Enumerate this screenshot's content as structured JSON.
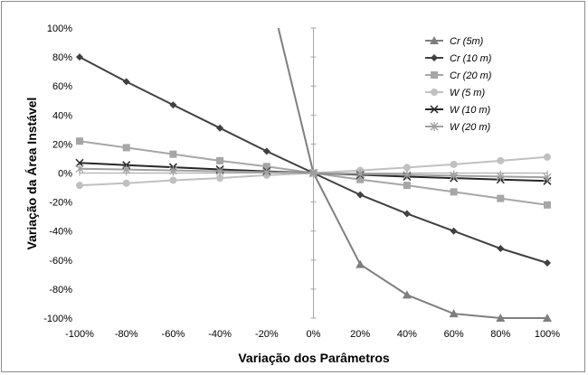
{
  "chart_data": {
    "type": "line",
    "xlabel": "Variação dos Parâmetros",
    "ylabel": "Variação da Área Instável",
    "x": [
      -100,
      -80,
      -60,
      -40,
      -20,
      0,
      20,
      40,
      60,
      80,
      100
    ],
    "x_tick_labels": [
      "-100%",
      "-80%",
      "-60%",
      "-40%",
      "-20%",
      "0%",
      "20%",
      "40%",
      "60%",
      "80%",
      "100%"
    ],
    "y_ticks": [
      -100,
      -80,
      -60,
      -40,
      -20,
      0,
      20,
      40,
      60,
      80,
      100
    ],
    "y_tick_labels": [
      "-100%",
      "-80%",
      "-60%",
      "-40%",
      "-20%",
      "0%",
      "20%",
      "40%",
      "60%",
      "80%",
      "100%"
    ],
    "xlim": [
      -100,
      100
    ],
    "ylim": [
      -100,
      100
    ],
    "grid": false,
    "legend_position": "top-right",
    "series": [
      {
        "name": "Cr (5m)",
        "marker": "triangle",
        "color": "#7f7f7f",
        "x": [
          -15,
          0,
          20,
          40,
          60,
          80,
          100
        ],
        "y": [
          100,
          0,
          -63,
          -84,
          -97,
          -100,
          -100
        ],
        "marker_x": [
          20,
          40,
          60,
          80,
          100
        ],
        "marker_y": [
          -63,
          -84,
          -97,
          -100,
          -100
        ]
      },
      {
        "name": "Cr (10 m)",
        "marker": "diamond",
        "color": "#404040",
        "x": [
          -100,
          -80,
          -60,
          -40,
          -20,
          0,
          20,
          40,
          60,
          80,
          100
        ],
        "y": [
          80,
          63,
          47,
          31,
          15,
          0,
          -15,
          -28,
          -40,
          -52,
          -62
        ]
      },
      {
        "name": "Cr (20 m)",
        "marker": "square",
        "color": "#a6a6a6",
        "x": [
          -100,
          -80,
          -60,
          -40,
          -20,
          0,
          20,
          40,
          60,
          80,
          100
        ],
        "y": [
          22,
          17.5,
          13,
          8.5,
          4.5,
          0,
          -4.5,
          -8.5,
          -13,
          -17.5,
          -22
        ]
      },
      {
        "name": "W (5 m)",
        "marker": "circle",
        "color": "#c0c0c0",
        "x": [
          -100,
          -80,
          -60,
          -40,
          -20,
          0,
          20,
          40,
          60,
          80,
          100
        ],
        "y": [
          -8.5,
          -7,
          -5,
          -3.5,
          -1.5,
          0,
          1.8,
          3.8,
          6,
          8.5,
          11
        ]
      },
      {
        "name": "W (10 m)",
        "marker": "x",
        "color": "#262626",
        "x": [
          -100,
          -80,
          -60,
          -40,
          -20,
          0,
          20,
          40,
          60,
          80,
          100
        ],
        "y": [
          7,
          5.5,
          4,
          2.5,
          1.2,
          0,
          -1.2,
          -2.5,
          -3.5,
          -4.5,
          -5.5
        ]
      },
      {
        "name": "W (20 m)",
        "marker": "asterisk",
        "color": "#a0a0a0",
        "x": [
          -100,
          -80,
          -60,
          -40,
          -20,
          0,
          20,
          40,
          60,
          80,
          100
        ],
        "y": [
          3,
          2.4,
          1.8,
          1.2,
          0.6,
          0,
          -0.6,
          -1.2,
          -1.8,
          -2.4,
          -3
        ]
      }
    ]
  }
}
